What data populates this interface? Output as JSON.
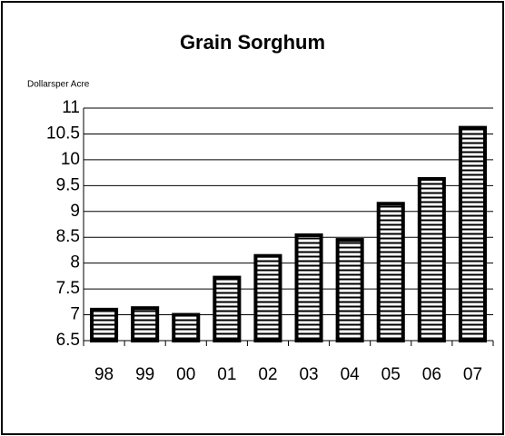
{
  "chart_data": {
    "type": "bar",
    "title": "Grain Sorghum",
    "y_label": "Dollarsper Acre",
    "categories": [
      "98",
      "99",
      "00",
      "01",
      "02",
      "03",
      "04",
      "05",
      "06",
      "07"
    ],
    "values": [
      7.1,
      7.13,
      7.0,
      7.72,
      8.14,
      8.54,
      8.45,
      9.15,
      9.63,
      10.62
    ],
    "color": "#000000",
    "ylim": [
      6.5,
      11
    ],
    "yticks": [
      6.5,
      7,
      7.5,
      8,
      8.5,
      9,
      9.5,
      10,
      10.5,
      11
    ],
    "grid": true
  }
}
